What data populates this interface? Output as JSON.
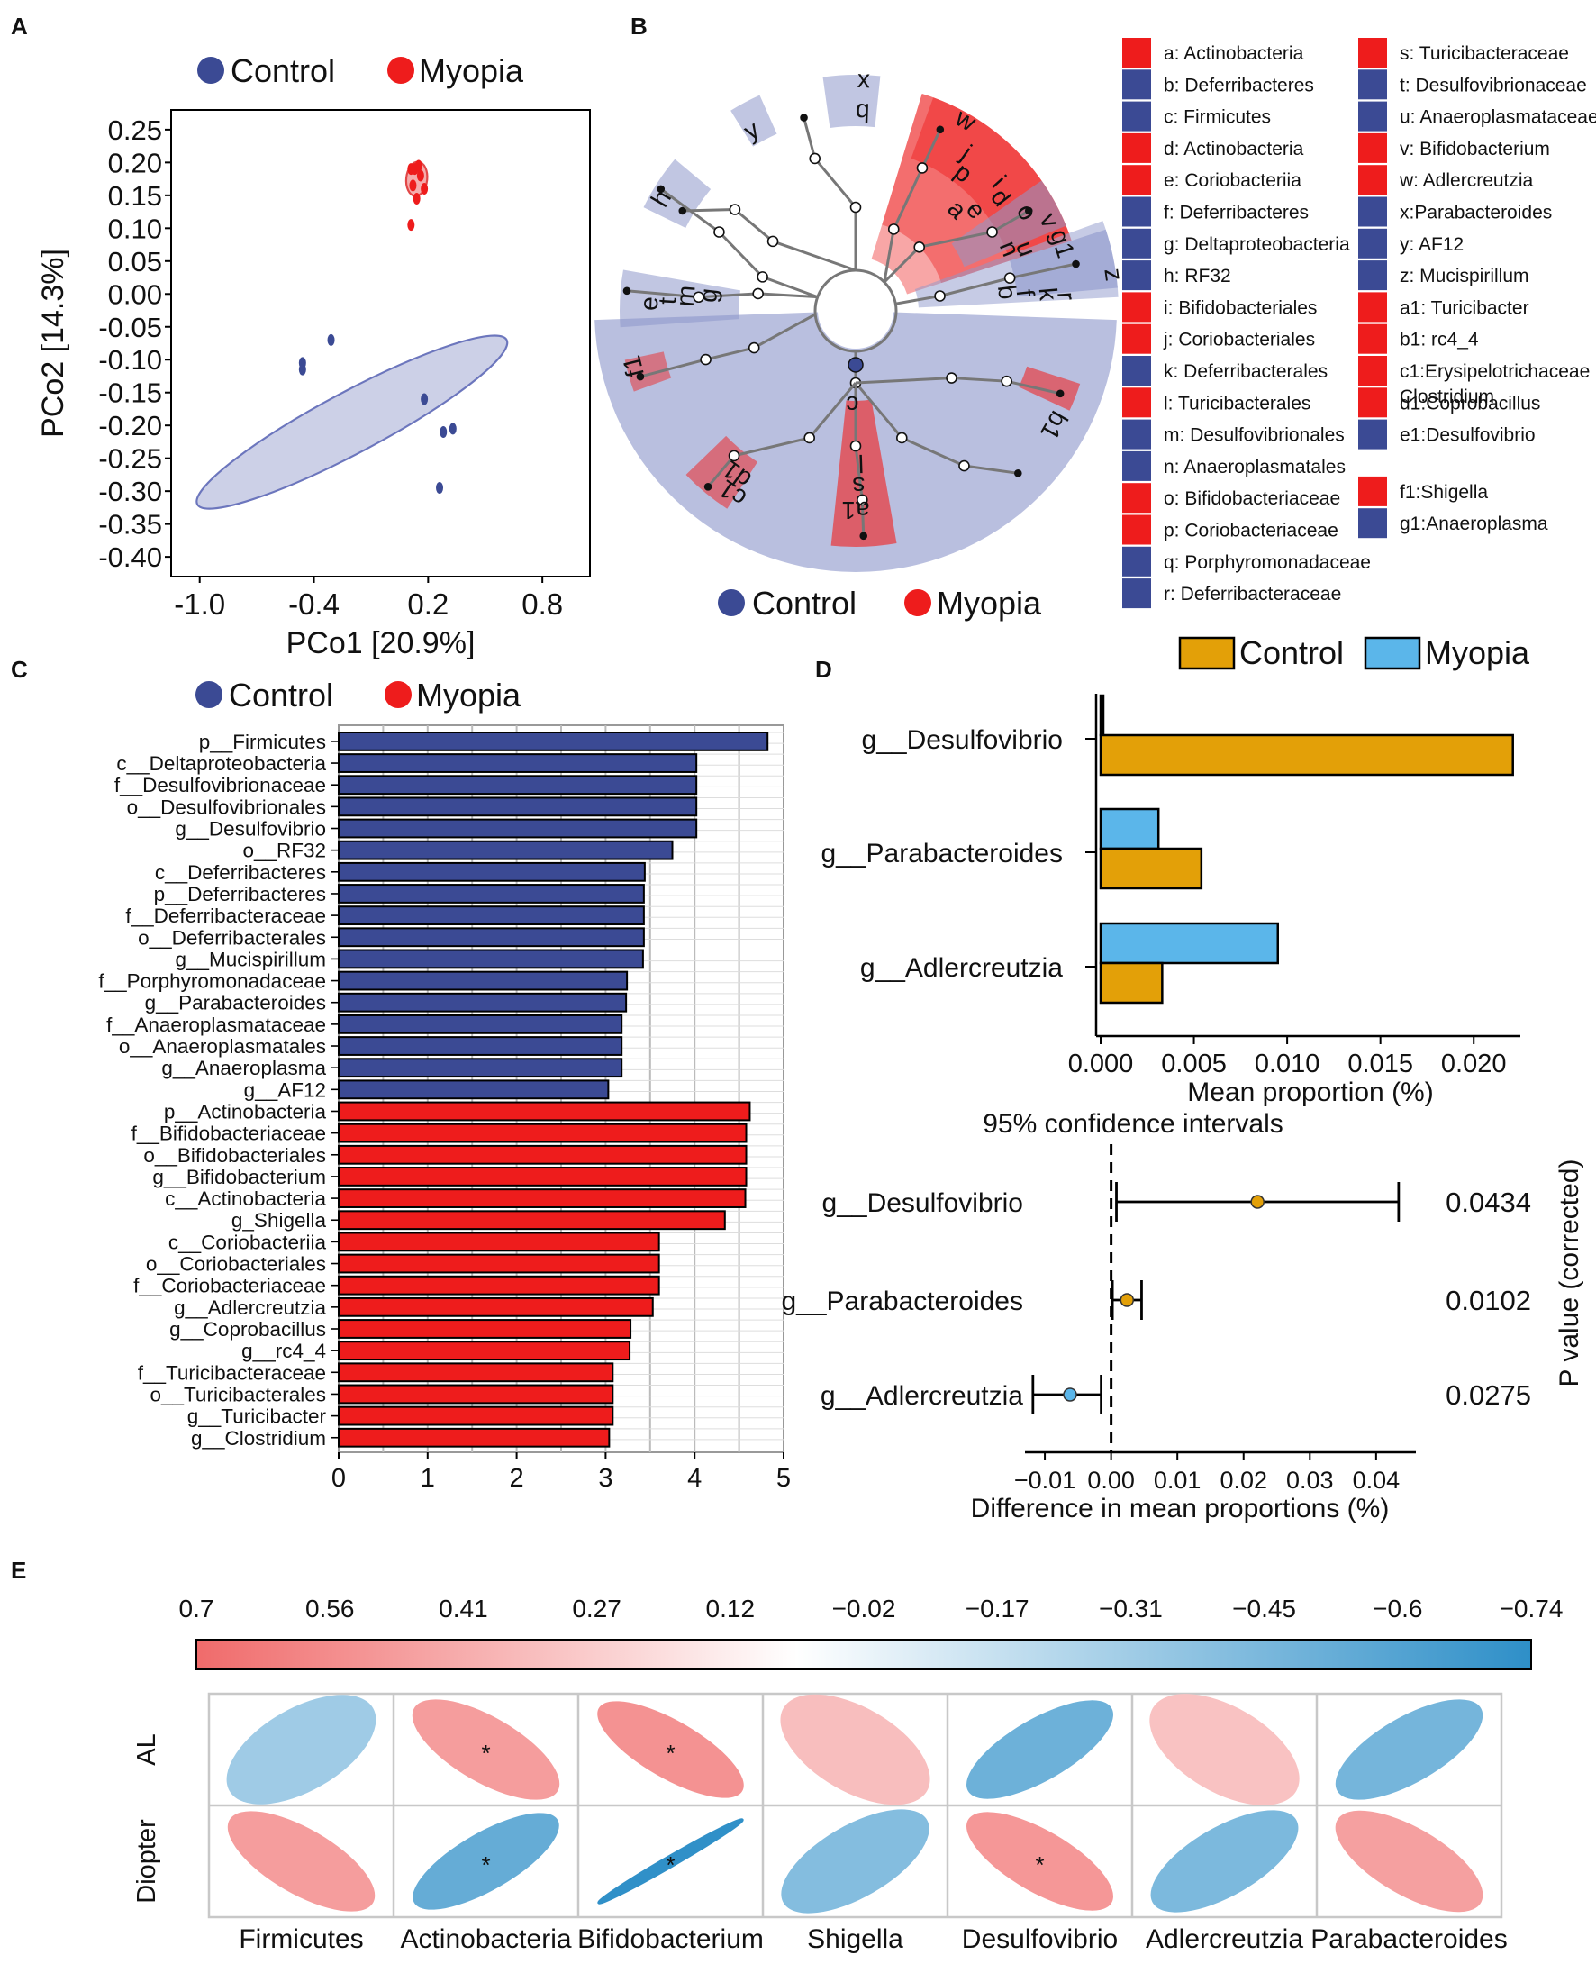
{
  "colors": {
    "control_blue": "#3b4a94",
    "myopia_red": "#ee1c1c",
    "control_gold": "#e3a008",
    "myopia_sky": "#5bb6ea",
    "ellipse_blue_fill": "#c7cbe4",
    "clado_blue": "#8e98cb",
    "clado_red": "#ee2a2a",
    "corr_pos": "#f06b6b",
    "corr_neg": "#2e8fc8"
  },
  "panels": {
    "A": "A",
    "B": "B",
    "C": "C",
    "D": "D",
    "E": "E"
  },
  "legend": {
    "control": "Control",
    "myopia": "Myopia"
  },
  "chart_data": [
    {
      "panel": "A",
      "type": "scatter",
      "xlabel": "PCo1 [20.9%]",
      "ylabel": "PCo2 [14.3%]",
      "xlim": [
        -1.15,
        1.05
      ],
      "ylim": [
        -0.43,
        0.28
      ],
      "xticks": [
        "-1.0",
        "-0.4",
        "0.2",
        "0.8"
      ],
      "xtick_values": [
        -1.0,
        -0.4,
        0.2,
        0.8
      ],
      "yticks": [
        "0.25",
        "0.20",
        "0.15",
        "0.10",
        "0.05",
        "0.00",
        "-0.05",
        "-0.10",
        "-0.15",
        "-0.20",
        "-0.25",
        "-0.30",
        "-0.35",
        "-0.40"
      ],
      "ytick_values": [
        0.25,
        0.2,
        0.15,
        0.1,
        0.05,
        0.0,
        -0.05,
        -0.1,
        -0.15,
        -0.2,
        -0.25,
        -0.3,
        -0.35,
        -0.4
      ],
      "series": [
        {
          "name": "Control",
          "points": [
            [
              -0.46,
              -0.105
            ],
            [
              -0.46,
              -0.115
            ],
            [
              -0.31,
              -0.07
            ],
            [
              0.18,
              -0.16
            ],
            [
              0.28,
              -0.21
            ],
            [
              0.33,
              -0.205
            ],
            [
              0.26,
              -0.295
            ]
          ]
        },
        {
          "name": "Myopia",
          "points": [
            [
              0.11,
              0.19
            ],
            [
              0.13,
              0.19
            ],
            [
              0.15,
              0.195
            ],
            [
              0.16,
              0.18
            ],
            [
              0.12,
              0.165
            ],
            [
              0.14,
              0.145
            ],
            [
              0.11,
              0.105
            ],
            [
              0.18,
              0.16
            ]
          ]
        }
      ],
      "ellipses": [
        {
          "name": "Control",
          "cx": -0.2,
          "cy": -0.195,
          "rx": 0.92,
          "ry": 0.16,
          "angle_deg": -28
        },
        {
          "name": "Myopia",
          "cx": 0.14,
          "cy": 0.175,
          "rx": 0.09,
          "ry": 0.055,
          "angle_deg": -84
        }
      ]
    },
    {
      "panel": "B",
      "type": "cladogram",
      "labels": [
        {
          "key": "a",
          "text": "a: Actinobacteria",
          "group": "Myopia"
        },
        {
          "key": "b",
          "text": "b: Deferribacteres",
          "group": "Control"
        },
        {
          "key": "c",
          "text": "c: Firmicutes",
          "group": "Control"
        },
        {
          "key": "d",
          "text": "d: Actinobacteria",
          "group": "Myopia"
        },
        {
          "key": "e",
          "text": "e: Coriobacteriia",
          "group": "Myopia"
        },
        {
          "key": "f",
          "text": "f: Deferribacteres",
          "group": "Control"
        },
        {
          "key": "g",
          "text": "g: Deltaproteobacteria",
          "group": "Control"
        },
        {
          "key": "h",
          "text": "h: RF32",
          "group": "Control"
        },
        {
          "key": "i",
          "text": "i: Bifidobacteriales",
          "group": "Myopia"
        },
        {
          "key": "j",
          "text": "j: Coriobacteriales",
          "group": "Myopia"
        },
        {
          "key": "k",
          "text": "k: Deferribacterales",
          "group": "Control"
        },
        {
          "key": "l",
          "text": "l: Turicibacterales",
          "group": "Myopia"
        },
        {
          "key": "m",
          "text": "m: Desulfovibrionales",
          "group": "Control"
        },
        {
          "key": "n",
          "text": "n: Anaeroplasmatales",
          "group": "Control"
        },
        {
          "key": "o",
          "text": "o: Bifidobacteriaceae",
          "group": "Myopia"
        },
        {
          "key": "p",
          "text": "p: Coriobacteriaceae",
          "group": "Myopia"
        },
        {
          "key": "q",
          "text": "q: Porphyromonadaceae",
          "group": "Control"
        },
        {
          "key": "r",
          "text": "r: Deferribacteraceae",
          "group": "Control"
        },
        {
          "key": "s",
          "text": "s: Turicibacteraceae",
          "group": "Myopia"
        },
        {
          "key": "t",
          "text": "t: Desulfovibrionaceae",
          "group": "Control"
        },
        {
          "key": "u",
          "text": "u: Anaeroplasmataceae",
          "group": "Control"
        },
        {
          "key": "v",
          "text": "v: Bifidobacterium",
          "group": "Myopia"
        },
        {
          "key": "w",
          "text": "w: Adlercreutzia",
          "group": "Myopia"
        },
        {
          "key": "x",
          "text": "x:Parabacteroides",
          "group": "Control"
        },
        {
          "key": "y",
          "text": "y: AF12",
          "group": "Control"
        },
        {
          "key": "z",
          "text": "z: Mucispirillum",
          "group": "Control"
        },
        {
          "key": "a1",
          "text": "a1: Turicibacter",
          "group": "Myopia"
        },
        {
          "key": "b1",
          "text": "b1: rc4_4",
          "group": "Myopia"
        },
        {
          "key": "c1",
          "text": "c1:Erysipelotrichaceae",
          "text2": "Clostridium",
          "group": "Myopia"
        },
        {
          "key": "d1",
          "text": "d1:Coprobacillus",
          "group": "Myopia"
        },
        {
          "key": "e1",
          "text": "e1:Desulfovibrio",
          "group": "Control"
        },
        {
          "key": "f1",
          "text": "f1:Shigella",
          "group": "Myopia"
        },
        {
          "key": "g1",
          "text": "g1:Anaeroplasma",
          "group": "Control"
        }
      ],
      "tree_labels": [
        "x",
        "q",
        "y",
        "h",
        "w",
        "j",
        "p",
        "i",
        "a",
        "e",
        "d",
        "o",
        "v",
        "n",
        "u",
        "g1",
        "b",
        "f",
        "k",
        "r",
        "z",
        "e",
        "t",
        "m",
        "g",
        "f1",
        "c",
        "b1",
        "c1",
        "d1",
        "l",
        "s",
        "a1"
      ]
    },
    {
      "panel": "C",
      "type": "bar",
      "orientation": "horizontal",
      "xlim": [
        0,
        5
      ],
      "xticks": [
        "0",
        "1",
        "2",
        "3",
        "4",
        "5"
      ],
      "categories": [
        "p__Firmicutes",
        "c__Deltaproteobacteria",
        "f__Desulfovibrionaceae",
        "o__Desulfovibrionales",
        "g__Desulfovibrio",
        "o__RF32",
        "c__Deferribacteres",
        "p__Deferribacteres",
        "f__Deferribacteraceae",
        "o__Deferribacterales",
        "g__Mucispirillum",
        "f__Porphyromonadaceae",
        "g__Parabacteroides",
        "f__Anaeroplasmataceae",
        "o__Anaeroplasmatales",
        "g__Anaeroplasma",
        "g__AF12",
        "p__Actinobacteria",
        "f__Bifidobacteriaceae",
        "o__Bifidobacteriales",
        "g__Bifidobacterium",
        "c__Actinobacteria",
        "g_Shigella",
        "c__Coriobacteriia",
        "o__Coriobacteriales",
        "f__Coriobacteriaceae",
        "g__Adlercreutzia",
        "g__Coprobacillus",
        "g__rc4_4",
        "f__Turicibacteraceae",
        "o__Turicibacterales",
        "g__Turicibacter",
        "g__Clostridium"
      ],
      "values": [
        4.82,
        4.02,
        4.02,
        4.02,
        4.02,
        3.75,
        3.44,
        3.43,
        3.43,
        3.43,
        3.42,
        3.24,
        3.23,
        3.18,
        3.18,
        3.18,
        3.03,
        4.62,
        4.58,
        4.58,
        4.58,
        4.57,
        4.34,
        3.6,
        3.6,
        3.6,
        3.53,
        3.28,
        3.27,
        3.08,
        3.08,
        3.08,
        3.04
      ],
      "groups": [
        "Control",
        "Control",
        "Control",
        "Control",
        "Control",
        "Control",
        "Control",
        "Control",
        "Control",
        "Control",
        "Control",
        "Control",
        "Control",
        "Control",
        "Control",
        "Control",
        "Control",
        "Myopia",
        "Myopia",
        "Myopia",
        "Myopia",
        "Myopia",
        "Myopia",
        "Myopia",
        "Myopia",
        "Myopia",
        "Myopia",
        "Myopia",
        "Myopia",
        "Myopia",
        "Myopia",
        "Myopia",
        "Myopia"
      ]
    },
    {
      "panel": "D-top",
      "type": "bar",
      "orientation": "horizontal",
      "xlabel": "Mean proportion (%)",
      "xlim": [
        0,
        0.0225
      ],
      "xticks": [
        "0.000",
        "0.005",
        "0.010",
        "0.015",
        "0.020"
      ],
      "xtick_values": [
        0,
        0.005,
        0.01,
        0.015,
        0.02
      ],
      "categories": [
        "g__Desulfovibrio",
        "g__Parabacteroides",
        "g__Adlercreutzia"
      ],
      "series": [
        {
          "name": "Myopia",
          "values": [
            0.0001,
            0.0031,
            0.0095
          ]
        },
        {
          "name": "Control",
          "values": [
            0.0221,
            0.0054,
            0.0033
          ]
        }
      ]
    },
    {
      "panel": "D-bottom",
      "type": "errorbar",
      "title": "95% confidence intervals",
      "xlabel": "Difference in mean proportions (%)",
      "ylabel": "P value (corrected)",
      "xlim": [
        -0.013,
        0.046
      ],
      "xticks": [
        "−0.01",
        "0.00",
        "0.01",
        "0.02",
        "0.03",
        "0.04"
      ],
      "xtick_values": [
        -0.01,
        0.0,
        0.01,
        0.02,
        0.03,
        0.04
      ],
      "categories": [
        "g__Desulfovibrio",
        "g__Parabacteroides",
        "g__Adlercreutzia"
      ],
      "estimates": [
        0.0221,
        0.0024,
        -0.0062
      ],
      "ci_low": [
        0.0008,
        0.0002,
        -0.0118
      ],
      "ci_high": [
        0.0434,
        0.0046,
        -0.0015
      ],
      "p_values": [
        "0.0434",
        "0.0102",
        "0.0275"
      ],
      "point_groups": [
        "Control",
        "Control",
        "Myopia"
      ]
    },
    {
      "panel": "E",
      "type": "heatmap",
      "colorbar_ticks": [
        "0.7",
        "0.56",
        "0.41",
        "0.27",
        "0.12",
        "−0.02",
        "−0.17",
        "−0.31",
        "−0.45",
        "−0.6",
        "−0.74"
      ],
      "rows": [
        "AL",
        "Diopter"
      ],
      "columns": [
        "Firmicutes",
        "Actinobacteria",
        "Bifidobacterium",
        "Shigella",
        "Desulfovibrio",
        "Adlercreutzia",
        "Parabacteroides"
      ],
      "values": [
        [
          -0.28,
          0.55,
          0.65,
          0.25,
          -0.6,
          0.22,
          -0.55
        ],
        [
          0.55,
          -0.65,
          -0.99,
          -0.45,
          0.6,
          -0.5,
          0.52
        ]
      ],
      "significance": [
        [
          "",
          "*",
          "*",
          "",
          "",
          "",
          ""
        ],
        [
          "",
          "*",
          "*",
          "",
          "*",
          "",
          ""
        ]
      ]
    }
  ]
}
